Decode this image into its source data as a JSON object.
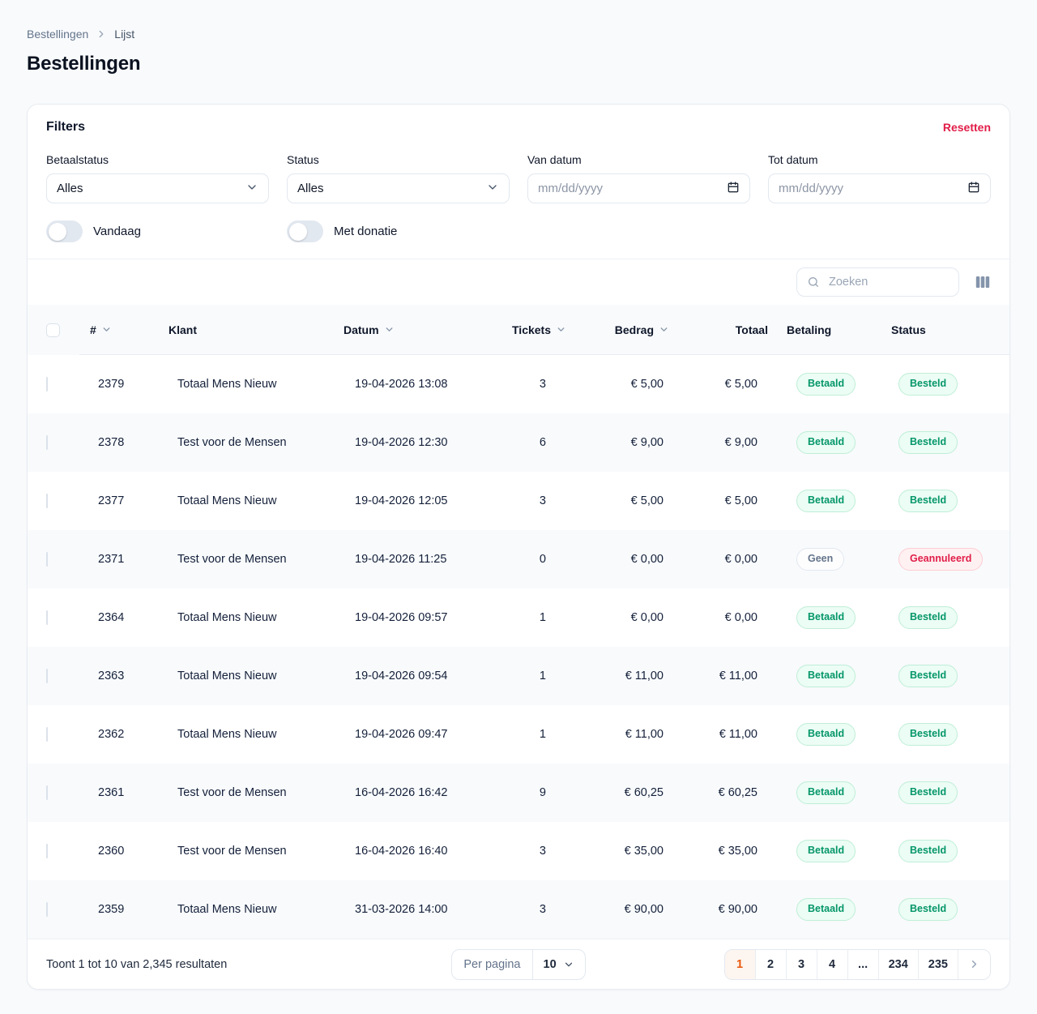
{
  "breadcrumb": {
    "items": [
      "Bestellingen",
      "Lijst"
    ]
  },
  "page": {
    "title": "Bestellingen"
  },
  "filters": {
    "title": "Filters",
    "reset_label": "Resetten",
    "fields": [
      {
        "label": "Betaalstatus",
        "value": "Alles"
      },
      {
        "label": "Status",
        "value": "Alles"
      },
      {
        "label": "Van datum",
        "placeholder": "mm/dd/yyyy"
      },
      {
        "label": "Tot datum",
        "placeholder": "mm/dd/yyyy"
      }
    ],
    "toggles": [
      {
        "label": "Vandaag",
        "on": false
      },
      {
        "label": "Met donatie",
        "on": false
      }
    ]
  },
  "toolbar": {
    "search_placeholder": "Zoeken"
  },
  "table": {
    "columns": [
      {
        "label": "#",
        "sortable": true
      },
      {
        "label": "Klant",
        "sortable": false
      },
      {
        "label": "Datum",
        "sortable": true
      },
      {
        "label": "Tickets",
        "sortable": true
      },
      {
        "label": "Bedrag",
        "sortable": true
      },
      {
        "label": "Totaal",
        "sortable": false
      },
      {
        "label": "Betaling",
        "sortable": false
      },
      {
        "label": "Status",
        "sortable": false
      }
    ],
    "rows": [
      {
        "id": "2379",
        "klant": "Totaal Mens Nieuw",
        "datum": "19-04-2026 13:08",
        "tickets": "3",
        "bedrag": "€ 5,00",
        "totaal": "€ 5,00",
        "betaling": "Betaald",
        "status": "Besteld"
      },
      {
        "id": "2378",
        "klant": "Test voor de Mensen",
        "datum": "19-04-2026 12:30",
        "tickets": "6",
        "bedrag": "€ 9,00",
        "totaal": "€ 9,00",
        "betaling": "Betaald",
        "status": "Besteld"
      },
      {
        "id": "2377",
        "klant": "Totaal Mens Nieuw",
        "datum": "19-04-2026 12:05",
        "tickets": "3",
        "bedrag": "€ 5,00",
        "totaal": "€ 5,00",
        "betaling": "Betaald",
        "status": "Besteld"
      },
      {
        "id": "2371",
        "klant": "Test voor de Mensen",
        "datum": "19-04-2026 11:25",
        "tickets": "0",
        "bedrag": "€ 0,00",
        "totaal": "€ 0,00",
        "betaling": "Geen",
        "status": "Geannuleerd"
      },
      {
        "id": "2364",
        "klant": "Totaal Mens Nieuw",
        "datum": "19-04-2026 09:57",
        "tickets": "1",
        "bedrag": "€ 0,00",
        "totaal": "€ 0,00",
        "betaling": "Betaald",
        "status": "Besteld"
      },
      {
        "id": "2363",
        "klant": "Totaal Mens Nieuw",
        "datum": "19-04-2026 09:54",
        "tickets": "1",
        "bedrag": "€ 11,00",
        "totaal": "€ 11,00",
        "betaling": "Betaald",
        "status": "Besteld"
      },
      {
        "id": "2362",
        "klant": "Totaal Mens Nieuw",
        "datum": "19-04-2026 09:47",
        "tickets": "1",
        "bedrag": "€ 11,00",
        "totaal": "€ 11,00",
        "betaling": "Betaald",
        "status": "Besteld"
      },
      {
        "id": "2361",
        "klant": "Test voor de Mensen",
        "datum": "16-04-2026 16:42",
        "tickets": "9",
        "bedrag": "€ 60,25",
        "totaal": "€ 60,25",
        "betaling": "Betaald",
        "status": "Besteld"
      },
      {
        "id": "2360",
        "klant": "Test voor de Mensen",
        "datum": "16-04-2026 16:40",
        "tickets": "3",
        "bedrag": "€ 35,00",
        "totaal": "€ 35,00",
        "betaling": "Betaald",
        "status": "Besteld"
      },
      {
        "id": "2359",
        "klant": "Totaal Mens Nieuw",
        "datum": "31-03-2026 14:00",
        "tickets": "3",
        "bedrag": "€ 90,00",
        "totaal": "€ 90,00",
        "betaling": "Betaald",
        "status": "Besteld"
      }
    ],
    "badge_styles": {
      "Betaald": "green",
      "Besteld": "green",
      "Geen": "gray",
      "Geannuleerd": "red"
    }
  },
  "footer": {
    "summary": "Toont 1 tot 10 van 2,345 resultaten",
    "per_page_label": "Per pagina",
    "per_page_value": "10",
    "pages": [
      "1",
      "2",
      "3",
      "4",
      "...",
      "234",
      "235"
    ],
    "active_page": "1"
  },
  "icons": {
    "breadcrumb-separator": "chevron-right",
    "select-caret": "chevron-down",
    "date-field": "calendar",
    "search": "magnifier",
    "column-visibility": "columns",
    "sort": "chevron-down",
    "pagination-next": "chevron-right"
  },
  "colors": {
    "accent_red": "#e11d48",
    "active_page_orange": "#ea580c",
    "badge_green_text": "#059669",
    "badge_green_bg": "#ecfdf5",
    "badge_red_text": "#e11d48",
    "badge_red_bg": "#fff1f2",
    "badge_gray_text": "#64748b",
    "row_alt_bg": "#f8fafc"
  }
}
